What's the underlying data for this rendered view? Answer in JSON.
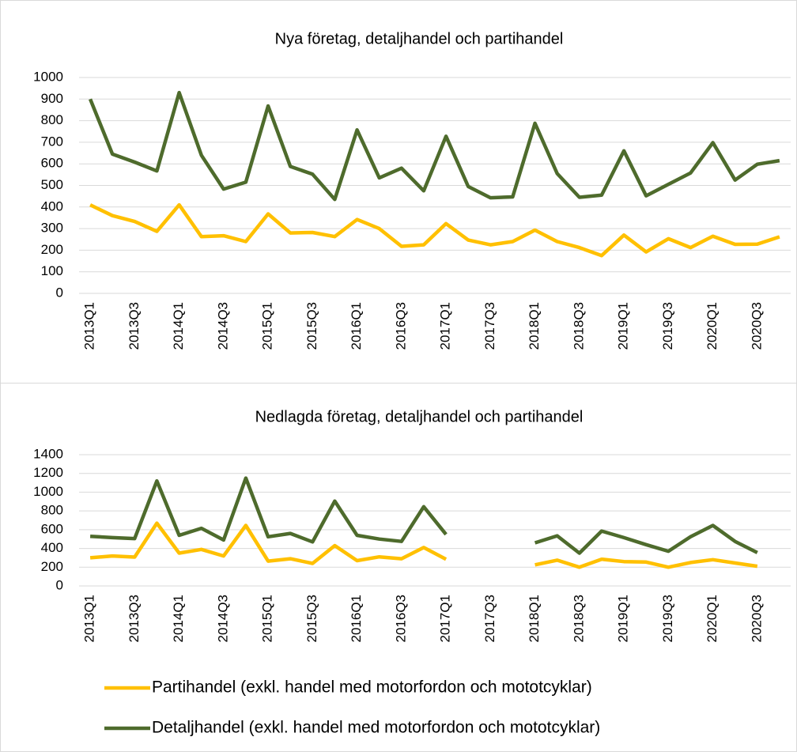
{
  "chart_data": [
    {
      "type": "line",
      "title": "Nya företag, detaljhandel och partihandel",
      "categories": [
        "2013Q1",
        null,
        "2013Q3",
        null,
        "2014Q1",
        null,
        "2014Q3",
        null,
        "2015Q1",
        null,
        "2015Q3",
        null,
        "2016Q1",
        null,
        "2016Q3",
        null,
        "2017Q1",
        null,
        "2017Q3",
        null,
        "2018Q1",
        null,
        "2018Q3",
        null,
        "2019Q1",
        null,
        "2019Q3",
        null,
        "2020Q1",
        null,
        "2020Q3",
        null
      ],
      "series": [
        {
          "name": "Partihandel (exkl. handel med motorfordon och mototcyklar)",
          "color": "#ffc000",
          "values": [
            410,
            360,
            333,
            287,
            410,
            263,
            267,
            240,
            368,
            280,
            282,
            263,
            342,
            300,
            218,
            225,
            323,
            247,
            225,
            240,
            293,
            240,
            212,
            175,
            270,
            192,
            253,
            212,
            265,
            227,
            228,
            262
          ]
        },
        {
          "name": "Detaljhandel (exkl. handel med motorfordon och mototcyklar)",
          "color": "#4e6b2c",
          "values": [
            900,
            645,
            608,
            567,
            930,
            640,
            483,
            515,
            868,
            588,
            552,
            435,
            757,
            535,
            580,
            475,
            728,
            495,
            443,
            447,
            788,
            555,
            445,
            455,
            660,
            452,
            505,
            558,
            698,
            525,
            598,
            615
          ]
        }
      ],
      "ylim": [
        0,
        1000
      ],
      "yticks": [
        0,
        100,
        200,
        300,
        400,
        500,
        600,
        700,
        800,
        900,
        1000
      ],
      "grid": true
    },
    {
      "type": "line",
      "title": "Nedlagda företag, detaljhandel och partihandel",
      "categories": [
        "2013Q1",
        null,
        "2013Q3",
        null,
        "2014Q1",
        null,
        "2014Q3",
        null,
        "2015Q1",
        null,
        "2015Q3",
        null,
        "2016Q1",
        null,
        "2016Q3",
        null,
        "2017Q1",
        null,
        "2017Q3",
        null,
        "2018Q1",
        null,
        "2018Q3",
        null,
        "2019Q1",
        null,
        "2019Q3",
        null,
        "2020Q1",
        null,
        "2020Q3",
        null
      ],
      "series": [
        {
          "color": "#ffc000",
          "values": [
            300,
            320,
            308,
            670,
            350,
            390,
            320,
            645,
            265,
            290,
            240,
            430,
            270,
            310,
            290,
            410,
            285,
            null,
            null,
            null,
            225,
            275,
            200,
            285,
            260,
            255,
            200,
            250,
            280,
            245,
            210,
            null
          ]
        },
        {
          "color": "#4e6b2c",
          "values": [
            530,
            515,
            505,
            1120,
            540,
            615,
            490,
            1150,
            525,
            560,
            470,
            905,
            540,
            500,
            475,
            845,
            550,
            null,
            null,
            null,
            460,
            535,
            350,
            585,
            515,
            440,
            370,
            525,
            645,
            475,
            355,
            null
          ]
        }
      ],
      "ylim": [
        0,
        1400
      ],
      "yticks": [
        0,
        200,
        400,
        600,
        800,
        1000,
        1200,
        1400
      ],
      "grid": true
    }
  ]
}
